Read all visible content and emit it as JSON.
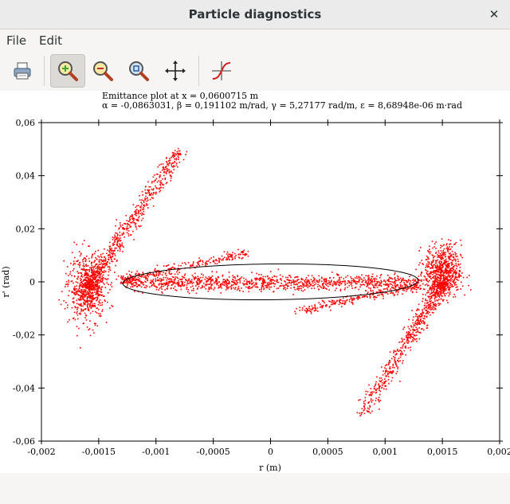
{
  "window": {
    "title": "Particle diagnostics"
  },
  "menu": {
    "file": "File",
    "edit": "Edit"
  },
  "toolbar": {
    "icons": [
      "printer-icon",
      "zoom-in-icon",
      "zoom-out-icon",
      "zoom-fit-icon",
      "pan-icon",
      "curve-fit-icon"
    ],
    "active": "zoom-in-icon"
  },
  "plot": {
    "title_line1": "Emittance plot at x = 0,0600715 m",
    "title_line2": "α = -0,0863031, β = 0,191102 m/rad, γ = 5,27177 rad/m, ε = 8,68948e-06 m·rad"
  },
  "chart_data": {
    "type": "scatter",
    "xlabel": "r (m)",
    "ylabel": "r' (rad)",
    "xlim": [
      -0.002,
      0.002
    ],
    "ylim": [
      -0.06,
      0.06
    ],
    "x_ticks": [
      "-0,002",
      "-0,0015",
      "-0,001",
      "-0,0005",
      "0",
      "0,0005",
      "0,001",
      "0,0015",
      "0,002"
    ],
    "y_ticks": [
      "0,06",
      "0,04",
      "0,02",
      "0",
      "-0,02",
      "-0,04",
      "-0,06"
    ],
    "point_color": "#ff0000",
    "ellipse": {
      "alpha": -0.0863031,
      "beta": 0.191102,
      "gamma": 5.27177,
      "emittance": 8.68948e-06
    },
    "particle_distribution": [
      {
        "name": "upper-left arm",
        "from": [
          -0.0016,
          -0.002
        ],
        "to": [
          -0.0008,
          0.05
        ],
        "spread_x": 4e-05
      },
      {
        "name": "left cluster",
        "center": [
          -0.0016,
          -0.002
        ],
        "spread": [
          8e-05,
          0.006
        ]
      },
      {
        "name": "core band",
        "from": [
          -0.0013,
          0.0
        ],
        "to": [
          0.0013,
          0.0
        ],
        "spread_y": 0.0015
      },
      {
        "name": "upper tail",
        "from": [
          -0.0013,
          0.001
        ],
        "to": [
          -0.0002,
          0.011
        ],
        "spread_y": 0.0008
      },
      {
        "name": "lower tail",
        "from": [
          0.0002,
          -0.011
        ],
        "to": [
          0.0013,
          -0.001
        ],
        "spread_y": 0.0008
      },
      {
        "name": "right cluster",
        "center": [
          0.0015,
          0.004
        ],
        "spread": [
          8e-05,
          0.005
        ]
      },
      {
        "name": "lower-right arm",
        "from": [
          0.0015,
          0.0
        ],
        "to": [
          0.0008,
          -0.05
        ],
        "spread_x": 4e-05
      }
    ]
  }
}
